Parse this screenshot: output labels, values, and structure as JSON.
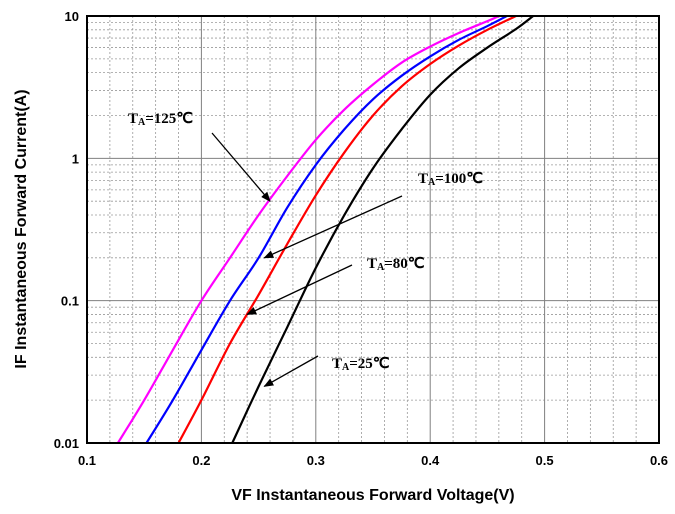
{
  "chart_data": {
    "type": "line",
    "xlabel": "VF Instantaneous Forward Voltage(V)",
    "ylabel": "IF Instantaneous Forward Current(A)",
    "xlim": [
      0.1,
      0.6
    ],
    "ylim": [
      0.01,
      10
    ],
    "yscale": "log",
    "x_ticks": [
      "0.1",
      "0.2",
      "0.3",
      "0.4",
      "0.5",
      "0.6"
    ],
    "y_ticks": [
      "0.01",
      "0.1",
      "1",
      "10"
    ],
    "grid": true,
    "series": [
      {
        "color": "#ff00ff",
        "x": [
          0.127,
          0.15,
          0.175,
          0.2,
          0.225,
          0.25,
          0.275,
          0.3,
          0.325,
          0.35,
          0.375,
          0.4,
          0.425,
          0.45,
          0.46
        ],
        "y": [
          0.01,
          0.02,
          0.045,
          0.1,
          0.2,
          0.4,
          0.75,
          1.35,
          2.2,
          3.3,
          4.7,
          6.1,
          7.6,
          9.2,
          10
        ]
      },
      {
        "color": "#0000ff",
        "x": [
          0.152,
          0.175,
          0.2,
          0.225,
          0.25,
          0.275,
          0.3,
          0.325,
          0.35,
          0.375,
          0.4,
          0.425,
          0.45,
          0.467
        ],
        "y": [
          0.01,
          0.02,
          0.045,
          0.1,
          0.2,
          0.45,
          0.9,
          1.6,
          2.6,
          3.8,
          5.2,
          6.8,
          8.5,
          10
        ]
      },
      {
        "color": "#ff0000",
        "x": [
          0.18,
          0.2,
          0.225,
          0.25,
          0.275,
          0.3,
          0.325,
          0.35,
          0.375,
          0.4,
          0.425,
          0.45,
          0.475
        ],
        "y": [
          0.01,
          0.02,
          0.05,
          0.11,
          0.25,
          0.55,
          1.1,
          2.0,
          3.2,
          4.6,
          6.2,
          8.0,
          10
        ]
      },
      {
        "color": "#000000",
        "x": [
          0.227,
          0.25,
          0.275,
          0.3,
          0.325,
          0.35,
          0.375,
          0.4,
          0.425,
          0.45,
          0.475,
          0.49
        ],
        "y": [
          0.01,
          0.025,
          0.065,
          0.17,
          0.4,
          0.85,
          1.6,
          2.8,
          4.3,
          6.0,
          8.1,
          10
        ]
      }
    ],
    "annotations": [
      {
        "main": "T",
        "sub": "A",
        "rest": "=125℃",
        "arrow_to": [
          0.26,
          0.5
        ]
      },
      {
        "main": "T",
        "sub": "A",
        "rest": "=100℃",
        "arrow_to": [
          0.255,
          0.2
        ]
      },
      {
        "main": "T",
        "sub": "A",
        "rest": "=80℃",
        "arrow_to": [
          0.24,
          0.08
        ]
      },
      {
        "main": "T",
        "sub": "A",
        "rest": "=25℃",
        "arrow_to": [
          0.255,
          0.025
        ]
      }
    ]
  }
}
